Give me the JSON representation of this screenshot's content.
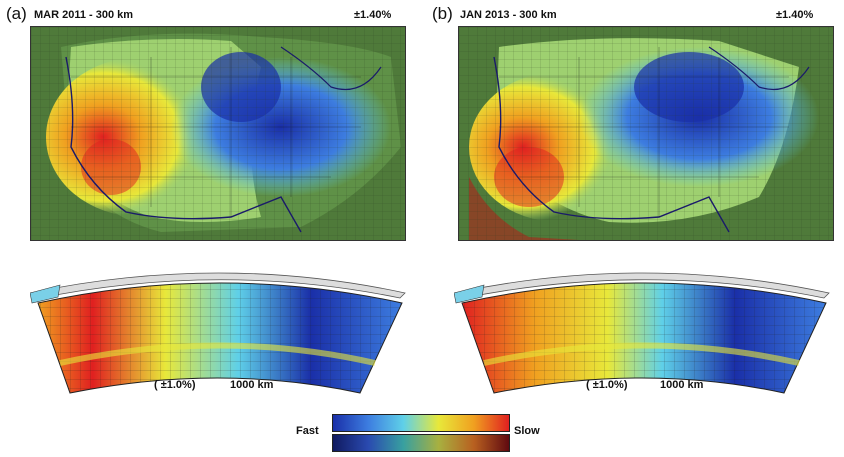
{
  "panels": [
    {
      "letter": "(a)",
      "title": "MAR 2011 - 300 km",
      "range": "±1.40%",
      "section_range": "( ±1.0%)",
      "section_scale": "1000 km"
    },
    {
      "letter": "(b)",
      "title": "JAN 2013 - 300 km",
      "range": "±1.40%",
      "section_range": "( ±1.0%)",
      "section_scale": "1000 km"
    }
  ],
  "colorbar": {
    "left_label": "Fast",
    "right_label": "Slow",
    "top_colors": [
      "#1a2fa8",
      "#3d7de0",
      "#5fd0e8",
      "#e8e83a",
      "#f0a020",
      "#e02020"
    ],
    "bottom_colors": [
      "#101a60",
      "#2a4ab0",
      "#38a0a0",
      "#a8b040",
      "#b86020",
      "#600a10"
    ]
  },
  "colors": {
    "background_map": "#4f7a3a",
    "coast": "#1a1a6a",
    "grid": "#2a3a20"
  }
}
